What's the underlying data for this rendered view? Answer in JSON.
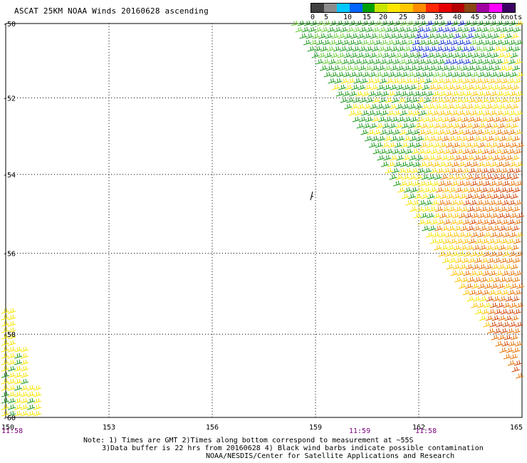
{
  "title": "ASCAT 25KM NOAA Winds 20160628 ascending",
  "legend": {
    "labels": [
      "0",
      "5",
      "10",
      "15",
      "20",
      "25",
      "30",
      "35",
      "40",
      "45",
      ">50 knots"
    ],
    "colors": [
      "#404040",
      "#8c8c8c",
      "#00c8ff",
      "#0064ff",
      "#00a000",
      "#c8e600",
      "#ffe600",
      "#ffc800",
      "#ff8c00",
      "#ff2800",
      "#e60000",
      "#b40000",
      "#8b4513",
      "#a000a0",
      "#ff00ff",
      "#3c0064"
    ]
  },
  "axes": {
    "lat_labels": [
      "-50",
      "-52",
      "-54",
      "-56",
      "-58",
      "-60"
    ],
    "lon_labels": [
      "150",
      "153",
      "156",
      "159",
      "162",
      "165"
    ]
  },
  "time_labels": [
    "11:58",
    "11:59",
    "11:58"
  ],
  "notes": {
    "line1": "Note: 1) Times are GMT 2)Times along bottom correspond to measurement at ~55S",
    "line2": "3)Data buffer is 22 hrs from 20160628 4) Black wind barbs indicate possible contamination",
    "line3": "NOAA/NESDIS/Center for Satellite Applications and Research"
  },
  "wind_colors": {
    "green": "#1a9a1a",
    "light_green": "#66cc33",
    "blue": "#1030d0",
    "yellow": "#f5e400",
    "gold": "#ffc000",
    "orange": "#e87000",
    "red_orange": "#d04000"
  }
}
